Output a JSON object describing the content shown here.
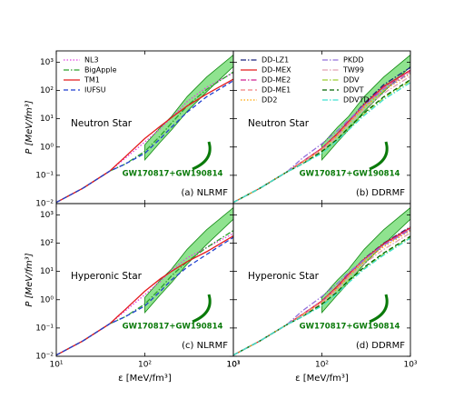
{
  "chart_data": [
    {
      "type": "line",
      "panel_label": "(a) NLRMF",
      "annotation": "Neutron Star",
      "band_label": "GW170817+GW190814",
      "ylabel": "P [MeV/fm³]",
      "xlim": [
        10,
        1000
      ],
      "ylim": [
        0.01,
        2500
      ],
      "log_x": true,
      "log_y": true,
      "legend": "upper left",
      "legend_columns": 1,
      "xticks": [
        10,
        100,
        1000
      ],
      "yticks": [
        {
          "value": 0.01,
          "label": "10⁻²"
        },
        {
          "value": 0.1,
          "label": "10⁻¹"
        },
        {
          "value": 1,
          "label": "10⁰"
        },
        {
          "value": 10,
          "label": "10¹"
        },
        {
          "value": 100,
          "label": "10²"
        },
        {
          "value": 1000,
          "label": "10³"
        }
      ],
      "x": [
        10,
        20,
        40,
        60,
        100,
        150,
        200,
        300,
        500,
        1000
      ],
      "band": {
        "color": "#33cc33",
        "x": [
          100,
          150,
          200,
          300,
          500,
          1000
        ],
        "lower": [
          0.35,
          1.5,
          4,
          18,
          90,
          700
        ],
        "upper": [
          1.2,
          5,
          12,
          60,
          300,
          1800
        ]
      },
      "series": [
        {
          "name": "NL3",
          "color": "#e040e0",
          "style": "dotted",
          "values": [
            0.011,
            0.035,
            0.14,
            0.4,
            1.5,
            4.5,
            11,
            40,
            130,
            420
          ]
        },
        {
          "name": "BigApple",
          "color": "#2ca02c",
          "style": "dashdot",
          "values": [
            0.011,
            0.035,
            0.14,
            0.25,
            0.7,
            2.5,
            7,
            28,
            110,
            450
          ]
        },
        {
          "name": "TM1",
          "color": "#e41a1c",
          "style": "solid",
          "values": [
            0.011,
            0.035,
            0.14,
            0.45,
            2,
            5.5,
            11,
            28,
            75,
            250
          ]
        },
        {
          "name": "IUFSU",
          "color": "#1f3fd0",
          "style": "dashed",
          "values": [
            0.011,
            0.035,
            0.14,
            0.25,
            0.6,
            2,
            5,
            17,
            60,
            220
          ]
        }
      ]
    },
    {
      "type": "line",
      "panel_label": "(b) DDRMF",
      "annotation": "Neutron Star",
      "band_label": "GW170817+GW190814",
      "xlim": [
        10,
        1000
      ],
      "ylim": [
        0.01,
        2500
      ],
      "log_x": true,
      "log_y": true,
      "legend": "upper left",
      "legend_columns": 2,
      "xticks": [
        10,
        100,
        1000
      ],
      "yticks": [
        0.01,
        0.1,
        1,
        10,
        100,
        1000
      ],
      "x": [
        10,
        20,
        40,
        60,
        100,
        150,
        200,
        300,
        500,
        1000
      ],
      "band": {
        "color": "#33cc33",
        "x": [
          100,
          150,
          200,
          300,
          500,
          1000
        ],
        "lower": [
          0.35,
          1.5,
          4,
          18,
          90,
          700
        ],
        "upper": [
          1.2,
          5,
          12,
          60,
          300,
          1800
        ]
      },
      "series": [
        {
          "name": "DD-LZ1",
          "color": "#1a237e",
          "style": "dashdot",
          "values": [
            0.011,
            0.035,
            0.13,
            0.3,
            0.9,
            3,
            8,
            35,
            160,
            650
          ]
        },
        {
          "name": "DD-MEX",
          "color": "#e41a1c",
          "style": "solid",
          "values": [
            0.011,
            0.035,
            0.13,
            0.3,
            0.9,
            3,
            8,
            32,
            140,
            520
          ]
        },
        {
          "name": "DD-ME2",
          "color": "#d02090",
          "style": "dashdot",
          "values": [
            0.011,
            0.035,
            0.13,
            0.3,
            0.9,
            2.8,
            7.5,
            30,
            130,
            500
          ]
        },
        {
          "name": "DD-ME1",
          "color": "#f08080",
          "style": "dashed",
          "values": [
            0.011,
            0.035,
            0.13,
            0.3,
            0.85,
            2.7,
            7,
            28,
            120,
            460
          ]
        },
        {
          "name": "DD2",
          "color": "#ffa500",
          "style": "dotted",
          "values": [
            0.011,
            0.035,
            0.13,
            0.28,
            0.8,
            2.5,
            6.5,
            25,
            100,
            400
          ]
        },
        {
          "name": "PKDD",
          "color": "#9370db",
          "style": "dashdot",
          "values": [
            0.011,
            0.035,
            0.13,
            0.4,
            1.3,
            3.8,
            9,
            30,
            110,
            420
          ]
        },
        {
          "name": "TW99",
          "color": "#e0a0b0",
          "style": "dashdot",
          "values": [
            0.011,
            0.035,
            0.13,
            0.27,
            0.75,
            2.3,
            6,
            22,
            80,
            320
          ]
        },
        {
          "name": "DDV",
          "color": "#9acd32",
          "style": "dashdot",
          "values": [
            0.011,
            0.035,
            0.13,
            0.25,
            0.65,
            1.8,
            4.5,
            15,
            55,
            220
          ]
        },
        {
          "name": "DDVT",
          "color": "#006400",
          "style": "dashed",
          "values": [
            0.011,
            0.035,
            0.13,
            0.25,
            0.7,
            1.9,
            4.8,
            16,
            60,
            240
          ]
        },
        {
          "name": "DDVTD",
          "color": "#40e0d0",
          "style": "dashdot",
          "values": [
            0.011,
            0.035,
            0.13,
            0.25,
            0.6,
            1.7,
            4,
            13,
            48,
            190
          ]
        }
      ]
    },
    {
      "type": "line",
      "panel_label": "(c) NLRMF",
      "annotation": "Hyperonic Star",
      "band_label": "GW170817+GW190814",
      "ylabel": "P [MeV/fm³]",
      "xlabel": "ε [MeV/fm³]",
      "xlim": [
        10,
        1000
      ],
      "ylim": [
        0.01,
        2500
      ],
      "log_x": true,
      "log_y": true,
      "xticks": [
        {
          "value": 10,
          "label": "10¹"
        },
        {
          "value": 100,
          "label": "10²"
        },
        {
          "value": 1000,
          "label": "10³"
        }
      ],
      "yticks": [
        {
          "value": 0.01,
          "label": "10⁻²"
        },
        {
          "value": 0.1,
          "label": "10⁻¹"
        },
        {
          "value": 1,
          "label": "10⁰"
        },
        {
          "value": 10,
          "label": "10¹"
        },
        {
          "value": 100,
          "label": "10²"
        },
        {
          "value": 1000,
          "label": "10³"
        }
      ],
      "x": [
        10,
        20,
        40,
        60,
        100,
        150,
        200,
        300,
        500,
        1000
      ],
      "band": {
        "color": "#33cc33",
        "x": [
          100,
          150,
          200,
          300,
          500,
          1000
        ],
        "lower": [
          0.35,
          1.5,
          4,
          18,
          90,
          700
        ],
        "upper": [
          1.2,
          5,
          12,
          60,
          300,
          1800
        ]
      },
      "series": [
        {
          "color": "#e040e0",
          "style": "dotted",
          "values": [
            0.011,
            0.035,
            0.14,
            0.4,
            1.5,
            4.5,
            11,
            30,
            70,
            220
          ]
        },
        {
          "color": "#2ca02c",
          "style": "dashdot",
          "values": [
            0.011,
            0.035,
            0.14,
            0.25,
            0.7,
            2.5,
            7,
            22,
            70,
            280
          ]
        },
        {
          "color": "#e41a1c",
          "style": "solid",
          "values": [
            0.011,
            0.035,
            0.14,
            0.45,
            2,
            5.5,
            10,
            22,
            50,
            180
          ]
        },
        {
          "color": "#1f3fd0",
          "style": "dashed",
          "values": [
            0.011,
            0.035,
            0.14,
            0.25,
            0.6,
            2,
            5,
            14,
            40,
            160
          ]
        }
      ]
    },
    {
      "type": "line",
      "panel_label": "(d) DDRMF",
      "annotation": "Hyperonic Star",
      "band_label": "GW170817+GW190814",
      "xlabel": "ε [MeV/fm³]",
      "xlim": [
        10,
        1000
      ],
      "ylim": [
        0.01,
        2500
      ],
      "log_x": true,
      "log_y": true,
      "xticks": [
        {
          "value": 10,
          "label": "10¹"
        },
        {
          "value": 100,
          "label": "10²"
        },
        {
          "value": 1000,
          "label": "10³"
        }
      ],
      "yticks": [
        0.01,
        0.1,
        1,
        10,
        100,
        1000
      ],
      "x": [
        10,
        20,
        40,
        60,
        100,
        150,
        200,
        300,
        500,
        1000
      ],
      "band": {
        "color": "#33cc33",
        "x": [
          100,
          150,
          200,
          300,
          500,
          1000
        ],
        "lower": [
          0.35,
          1.5,
          4,
          18,
          90,
          700
        ],
        "upper": [
          1.2,
          5,
          12,
          60,
          300,
          1800
        ]
      },
      "series": [
        {
          "color": "#1a237e",
          "style": "dashdot",
          "values": [
            0.011,
            0.035,
            0.13,
            0.3,
            0.9,
            3,
            8,
            28,
            100,
            380
          ]
        },
        {
          "color": "#e41a1c",
          "style": "solid",
          "values": [
            0.011,
            0.035,
            0.13,
            0.3,
            0.9,
            3,
            8,
            27,
            95,
            350
          ]
        },
        {
          "color": "#d02090",
          "style": "dashdot",
          "values": [
            0.011,
            0.035,
            0.13,
            0.3,
            0.9,
            2.8,
            7.5,
            26,
            90,
            330
          ]
        },
        {
          "color": "#f08080",
          "style": "dashed",
          "values": [
            0.011,
            0.035,
            0.13,
            0.3,
            0.85,
            2.7,
            7,
            25,
            85,
            310
          ]
        },
        {
          "color": "#ffa500",
          "style": "dotted",
          "values": [
            0.011,
            0.035,
            0.13,
            0.28,
            0.8,
            2.5,
            6.5,
            22,
            75,
            280
          ]
        },
        {
          "color": "#9370db",
          "style": "dashdot",
          "values": [
            0.011,
            0.035,
            0.13,
            0.4,
            1.3,
            3.8,
            9,
            26,
            85,
            300
          ]
        },
        {
          "color": "#e0a0b0",
          "style": "dashdot",
          "values": [
            0.011,
            0.035,
            0.13,
            0.27,
            0.75,
            2.3,
            6,
            19,
            60,
            230
          ]
        },
        {
          "color": "#9acd32",
          "style": "dashdot",
          "values": [
            0.011,
            0.035,
            0.13,
            0.25,
            0.65,
            1.8,
            4.5,
            13,
            42,
            160
          ]
        },
        {
          "color": "#006400",
          "style": "dashed",
          "values": [
            0.011,
            0.035,
            0.13,
            0.25,
            0.7,
            1.9,
            4.8,
            14,
            45,
            175
          ]
        },
        {
          "color": "#40e0d0",
          "style": "dashdot",
          "values": [
            0.011,
            0.035,
            0.13,
            0.25,
            0.6,
            1.7,
            4,
            12,
            38,
            150
          ]
        }
      ]
    }
  ]
}
